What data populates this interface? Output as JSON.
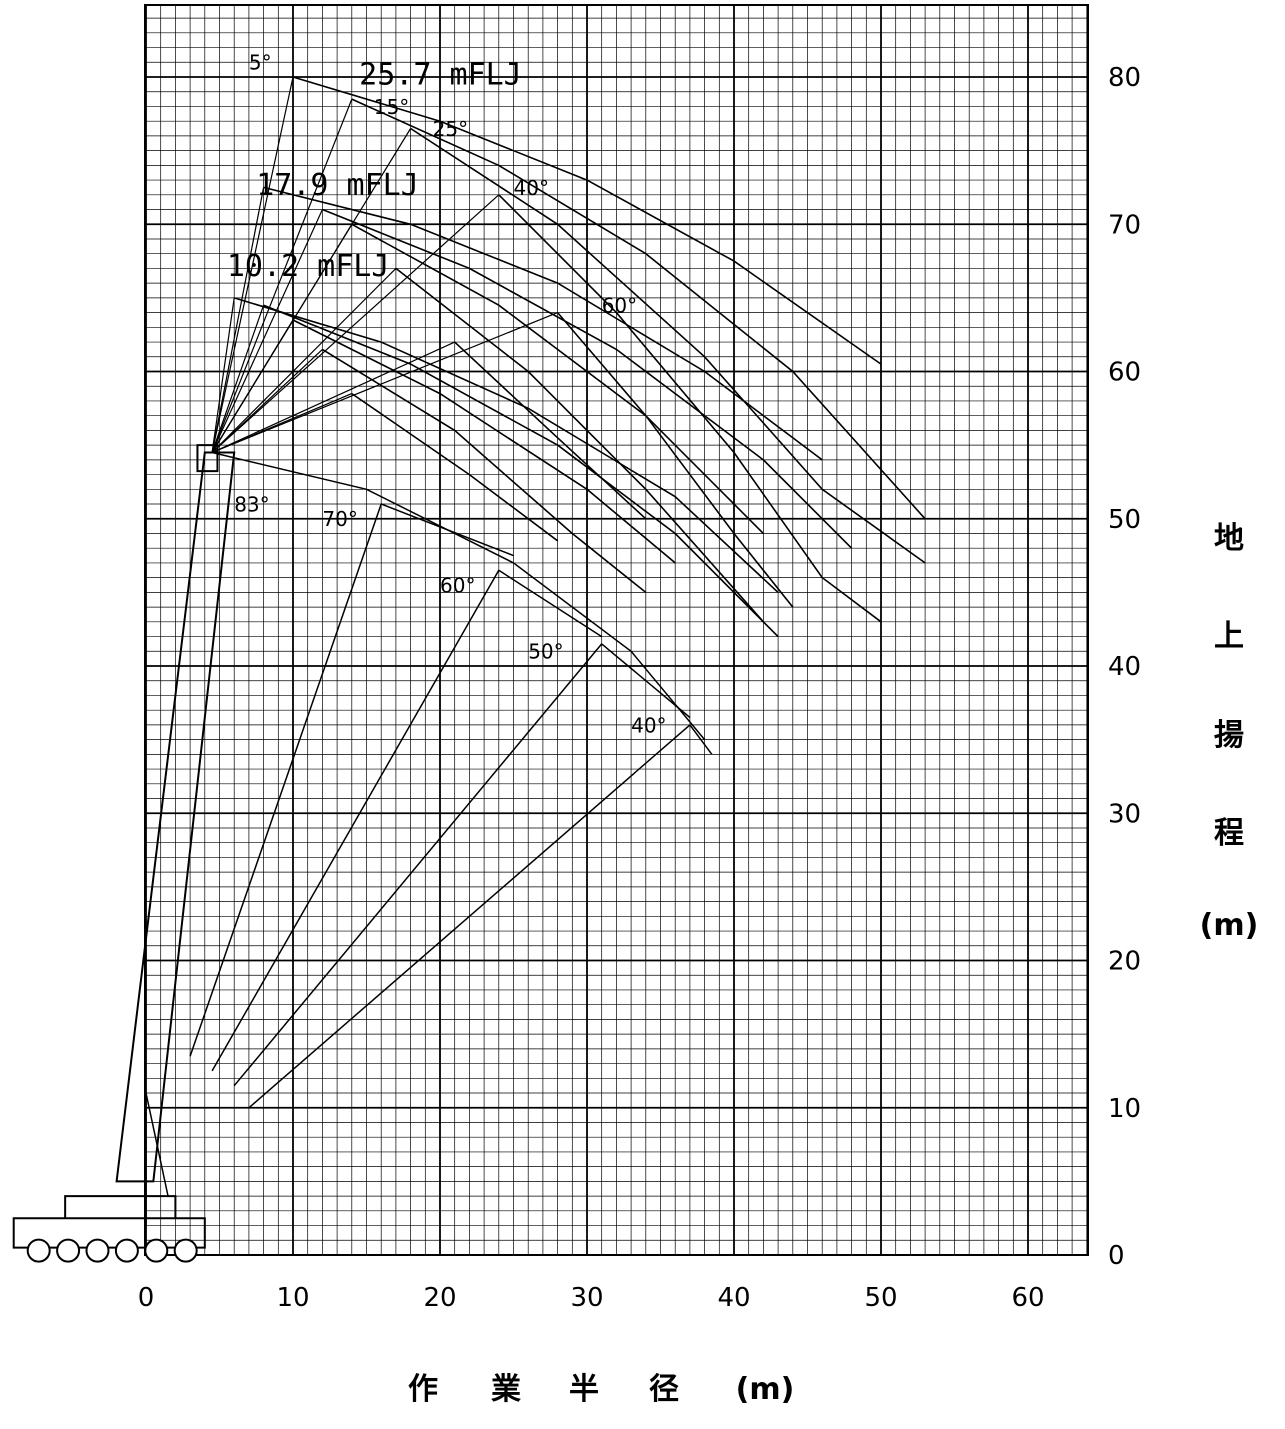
{
  "chart_data": {
    "type": "line",
    "xlabel": "作 業 半 径 (m)",
    "ylabel": "地 上 揚 程 (m)",
    "ylabel_chars": [
      "地",
      "上",
      "揚",
      "程",
      "(m)"
    ],
    "xlabel_chars": [
      "作",
      "業",
      "半",
      "径",
      "(m)"
    ],
    "xlim": [
      -10,
      64
    ],
    "ylim": [
      -2,
      85
    ],
    "x_ticks": [
      "0",
      "10",
      "20",
      "30",
      "40",
      "50",
      "60"
    ],
    "y_ticks": [
      "0",
      "10",
      "20",
      "30",
      "40",
      "50",
      "60",
      "70",
      "80"
    ],
    "grid": true,
    "boom_angle_labels": [
      "83°",
      "70°",
      "60°",
      "50°",
      "40°"
    ],
    "jib_lengths": [
      "25.7 mFLJ",
      "17.9 mFLJ",
      "10.2 mFLJ"
    ],
    "jib_offset_labels": [
      "5°",
      "15°",
      "25°",
      "40°",
      "60°"
    ],
    "boom_tip": [
      4.5,
      54.5
    ],
    "boom_arcs": [
      {
        "label": "83°",
        "points": [
          [
            4.5,
            54.5
          ],
          [
            15,
            52
          ],
          [
            25,
            47
          ],
          [
            33,
            41
          ],
          [
            38,
            35
          ]
        ]
      },
      {
        "label": "70°",
        "points": [
          [
            16,
            51
          ],
          [
            25,
            47.5
          ]
        ]
      },
      {
        "label": "60°",
        "points": [
          [
            24,
            46.5
          ],
          [
            31,
            42
          ]
        ]
      },
      {
        "label": "50°",
        "points": [
          [
            31,
            41.5
          ],
          [
            37,
            36.5
          ]
        ]
      },
      {
        "label": "40°",
        "points": [
          [
            37,
            36
          ],
          [
            38.5,
            34
          ]
        ]
      }
    ],
    "boom_lines": [
      {
        "label": "70°",
        "points": [
          [
            3,
            13.5
          ],
          [
            16,
            51
          ]
        ]
      },
      {
        "label": "60°",
        "points": [
          [
            4.5,
            12.5
          ],
          [
            24,
            46.5
          ]
        ]
      },
      {
        "label": "50°",
        "points": [
          [
            6,
            11.5
          ],
          [
            31,
            41.5
          ]
        ]
      },
      {
        "label": "40°",
        "points": [
          [
            7,
            10
          ],
          [
            37,
            36
          ]
        ]
      }
    ],
    "jib_curves": [
      {
        "name": "25.7 mFLJ 5°",
        "points": [
          [
            10,
            80
          ],
          [
            20,
            77
          ],
          [
            30,
            73
          ],
          [
            40,
            67.5
          ],
          [
            50,
            60.5
          ]
        ]
      },
      {
        "name": "25.7 mFLJ 15°",
        "points": [
          [
            14,
            78.5
          ],
          [
            24,
            74
          ],
          [
            34,
            68
          ],
          [
            44,
            60
          ],
          [
            53,
            50
          ]
        ]
      },
      {
        "name": "25.7 mFLJ 25°",
        "points": [
          [
            18,
            76.5
          ],
          [
            28,
            70
          ],
          [
            38,
            61
          ],
          [
            46,
            52
          ],
          [
            53,
            47
          ]
        ]
      },
      {
        "name": "25.7 mFLJ 40°",
        "points": [
          [
            24,
            72
          ],
          [
            32,
            64
          ],
          [
            40,
            54.5
          ],
          [
            46,
            46
          ],
          [
            50,
            43
          ]
        ]
      },
      {
        "name": "25.7 mFLJ 60°",
        "points": [
          [
            28,
            64
          ],
          [
            34,
            57
          ],
          [
            40,
            49
          ],
          [
            44,
            44
          ]
        ]
      },
      {
        "name": "17.9 mFLJ 5°",
        "points": [
          [
            8,
            72.5
          ],
          [
            18,
            70
          ],
          [
            28,
            66
          ],
          [
            38,
            60
          ],
          [
            46,
            54
          ]
        ]
      },
      {
        "name": "17.9 mFLJ 15°",
        "points": [
          [
            12,
            71
          ],
          [
            22,
            67
          ],
          [
            32,
            61.5
          ],
          [
            42,
            54
          ],
          [
            48,
            48
          ]
        ]
      },
      {
        "name": "17.9 mFLJ 25°",
        "points": [
          [
            14,
            70
          ],
          [
            24,
            64.5
          ],
          [
            34,
            57
          ],
          [
            42,
            49
          ]
        ]
      },
      {
        "name": "17.9 mFLJ 40°",
        "points": [
          [
            17,
            67
          ],
          [
            26,
            60
          ],
          [
            34,
            52
          ],
          [
            42,
            43
          ]
        ]
      },
      {
        "name": "17.9 mFLJ 60°",
        "points": [
          [
            21,
            62
          ],
          [
            28,
            55.5
          ],
          [
            34,
            50
          ]
        ]
      },
      {
        "name": "10.2 mFLJ 5°",
        "points": [
          [
            6,
            65
          ],
          [
            16,
            62
          ],
          [
            26,
            57.5
          ],
          [
            36,
            51.5
          ],
          [
            43,
            45
          ]
        ]
      },
      {
        "name": "10.2 mFLJ 15°",
        "points": [
          [
            8,
            64.5
          ],
          [
            18,
            60.5
          ],
          [
            28,
            55
          ],
          [
            36,
            49
          ],
          [
            43,
            42
          ]
        ]
      },
      {
        "name": "10.2 mFLJ 25°",
        "points": [
          [
            10,
            63.5
          ],
          [
            20,
            58.5
          ],
          [
            30,
            52
          ],
          [
            36,
            47
          ]
        ]
      },
      {
        "name": "10.2 mFLJ 40°",
        "points": [
          [
            12,
            61.5
          ],
          [
            21,
            56
          ],
          [
            29,
            49
          ],
          [
            34,
            45
          ]
        ]
      },
      {
        "name": "10.2 mFLJ 60°",
        "points": [
          [
            14,
            58.5
          ],
          [
            22,
            53
          ],
          [
            28,
            48.5
          ]
        ]
      }
    ]
  }
}
